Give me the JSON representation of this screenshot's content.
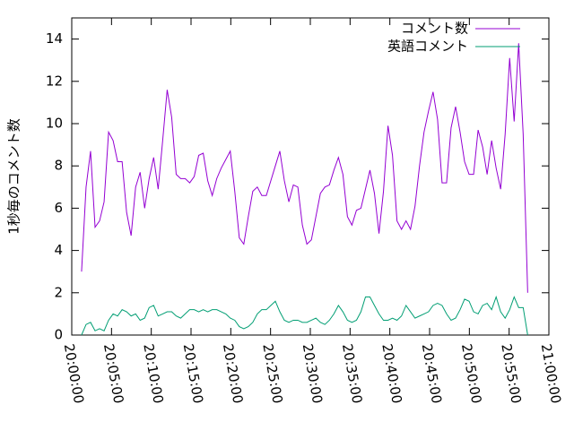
{
  "chart_data": {
    "type": "line",
    "ylabel": "1秒毎のコメント数",
    "x": [
      "20:01:14",
      "20:01:48",
      "20:02:22",
      "20:02:56",
      "20:03:30",
      "20:04:04",
      "20:04:38",
      "20:05:12",
      "20:05:46",
      "20:06:20",
      "20:06:54",
      "20:07:28",
      "20:08:02",
      "20:08:36",
      "20:09:10",
      "20:09:44",
      "20:10:18",
      "20:10:52",
      "20:11:26",
      "20:12:00",
      "20:12:34",
      "20:13:08",
      "20:13:42",
      "20:14:16",
      "20:14:50",
      "20:15:24",
      "20:15:58",
      "20:16:32",
      "20:17:06",
      "20:17:40",
      "20:18:14",
      "20:18:48",
      "20:19:22",
      "20:19:56",
      "20:20:30",
      "20:21:04",
      "20:21:38",
      "20:22:12",
      "20:22:46",
      "20:23:20",
      "20:23:54",
      "20:24:28",
      "20:25:02",
      "20:25:36",
      "20:26:10",
      "20:26:44",
      "20:27:18",
      "20:27:52",
      "20:28:26",
      "20:29:00",
      "20:29:34",
      "20:30:08",
      "20:30:42",
      "20:31:16",
      "20:31:50",
      "20:32:24",
      "20:32:58",
      "20:33:32",
      "20:34:06",
      "20:34:40",
      "20:35:14",
      "20:35:48",
      "20:36:22",
      "20:36:56",
      "20:37:30",
      "20:38:04",
      "20:38:38",
      "20:39:12",
      "20:39:46",
      "20:40:20",
      "20:40:54",
      "20:41:28",
      "20:42:02",
      "20:42:36",
      "20:43:10",
      "20:43:44",
      "20:44:18",
      "20:44:52",
      "20:45:26",
      "20:46:00",
      "20:46:34",
      "20:47:08",
      "20:47:42",
      "20:48:16",
      "20:48:50",
      "20:49:24",
      "20:49:58",
      "20:50:32",
      "20:51:06",
      "20:51:40",
      "20:52:14",
      "20:52:48",
      "20:53:22",
      "20:53:56",
      "20:54:30",
      "20:55:04",
      "20:55:38",
      "20:56:12",
      "20:56:46",
      "20:57:20"
    ],
    "series": [
      {
        "name": "コメント数",
        "color": "#9400d3",
        "values": [
          3,
          7,
          8.7,
          5.1,
          5.4,
          6.3,
          9.6,
          9.2,
          8.2,
          8.2,
          5.8,
          4.7,
          7,
          7.7,
          6,
          7.4,
          8.4,
          6.9,
          9.2,
          11.6,
          10.3,
          7.6,
          7.4,
          7.4,
          7.2,
          7.5,
          8.5,
          8.6,
          7.3,
          6.6,
          7.4,
          7.9,
          8.3,
          8.7,
          6.8,
          4.6,
          4.3,
          5.6,
          6.8,
          7,
          6.6,
          6.6,
          7.3,
          8,
          8.7,
          7.3,
          6.3,
          7.1,
          7,
          5.2,
          4.3,
          4.5,
          5.6,
          6.7,
          7,
          7.1,
          7.8,
          8.4,
          7.6,
          5.6,
          5.2,
          5.9,
          6,
          6.9,
          7.8,
          6.7,
          4.8,
          6.8,
          9.9,
          8.5,
          5.4,
          5,
          5.4,
          5,
          6.1,
          8,
          9.6,
          10.6,
          11.5,
          10.2,
          7.2,
          7.2,
          9.8,
          10.8,
          9.6,
          8.2,
          7.6,
          7.6,
          9.7,
          8.9,
          7.6,
          9.2,
          7.9,
          6.9,
          9.5,
          13.1,
          10.1,
          13.8,
          9.5,
          2
        ]
      },
      {
        "name": "英語コメント",
        "color": "#009e73",
        "values": [
          0,
          0.5,
          0.6,
          0.2,
          0.3,
          0.2,
          0.7,
          1.0,
          0.9,
          1.2,
          1.1,
          0.9,
          1.0,
          0.7,
          0.8,
          1.3,
          1.4,
          0.9,
          1.0,
          1.1,
          1.1,
          0.9,
          0.8,
          1.0,
          1.2,
          1.2,
          1.1,
          1.2,
          1.1,
          1.2,
          1.2,
          1.1,
          1.0,
          0.8,
          0.7,
          0.4,
          0.3,
          0.4,
          0.6,
          1.0,
          1.2,
          1.2,
          1.4,
          1.6,
          1.1,
          0.7,
          0.6,
          0.7,
          0.7,
          0.6,
          0.6,
          0.7,
          0.8,
          0.6,
          0.5,
          0.7,
          1.0,
          1.4,
          1.1,
          0.7,
          0.6,
          0.7,
          1.1,
          1.8,
          1.8,
          1.4,
          1.0,
          0.7,
          0.7,
          0.8,
          0.7,
          0.9,
          1.4,
          1.1,
          0.8,
          0.9,
          1.0,
          1.1,
          1.4,
          1.5,
          1.4,
          1.0,
          0.7,
          0.8,
          1.2,
          1.7,
          1.6,
          1.1,
          1.0,
          1.4,
          1.5,
          1.2,
          1.8,
          1.1,
          0.8,
          1.2,
          1.8,
          1.3,
          1.3,
          0
        ]
      }
    ],
    "xlim": [
      "20:00:00",
      "21:00:00"
    ],
    "xticks": [
      "20:00:00",
      "20:05:00",
      "20:10:00",
      "20:15:00",
      "20:20:00",
      "20:25:00",
      "20:30:00",
      "20:35:00",
      "20:40:00",
      "20:45:00",
      "20:50:00",
      "20:55:00",
      "21:00:00"
    ],
    "ylim": [
      0,
      15
    ],
    "yticks": [
      0,
      2,
      4,
      6,
      8,
      10,
      12,
      14
    ],
    "legend": "top-right"
  }
}
